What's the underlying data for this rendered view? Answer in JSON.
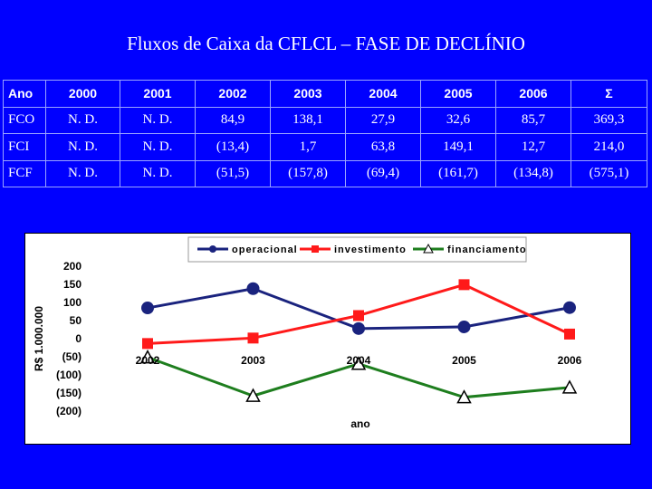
{
  "title": "Fluxos de Caixa da CFLCL – FASE DE DECLÍNIO",
  "table": {
    "header": [
      "Ano",
      "2000",
      "2001",
      "2002",
      "2003",
      "2004",
      "2005",
      "2006",
      "Σ"
    ],
    "rows": [
      [
        "FCO",
        "N. D.",
        "N. D.",
        "84,9",
        "138,1",
        "27,9",
        "32,6",
        "85,7",
        "369,3"
      ],
      [
        "FCI",
        "N. D.",
        "N. D.",
        "(13,4)",
        "1,7",
        "63,8",
        "149,1",
        "12,7",
        "214,0"
      ],
      [
        "FCF",
        "N. D.",
        "N. D.",
        "(51,5)",
        "(157,8)",
        "(69,4)",
        "(161,7)",
        "(134,8)",
        "(575,1)"
      ]
    ]
  },
  "chart_data": {
    "type": "line",
    "categories": [
      "2002",
      "2003",
      "2004",
      "2005",
      "2006"
    ],
    "series": [
      {
        "name": "operacional",
        "color": "#1a237e",
        "marker": "circle",
        "values": [
          84.9,
          138.1,
          27.9,
          32.6,
          85.7
        ]
      },
      {
        "name": "investimento",
        "color": "#ff1a1a",
        "marker": "square",
        "values": [
          -13.4,
          1.7,
          63.8,
          149.1,
          12.7
        ]
      },
      {
        "name": "financiamento",
        "color": "#1e7e1e",
        "marker": "triangle",
        "values": [
          -51.5,
          -157.8,
          -69.4,
          -161.7,
          -134.8
        ]
      }
    ],
    "yticks": [
      200,
      150,
      100,
      50,
      0,
      -50,
      -100,
      -150,
      -200
    ],
    "ytick_labels": [
      "200",
      "150",
      "100",
      "50",
      "0",
      "(50)",
      "(100)",
      "(150)",
      "(200)"
    ],
    "ylim": [
      -200,
      200
    ],
    "xlabel": "ano",
    "ylabel": "R$ 1.000.000",
    "legend": "top"
  }
}
